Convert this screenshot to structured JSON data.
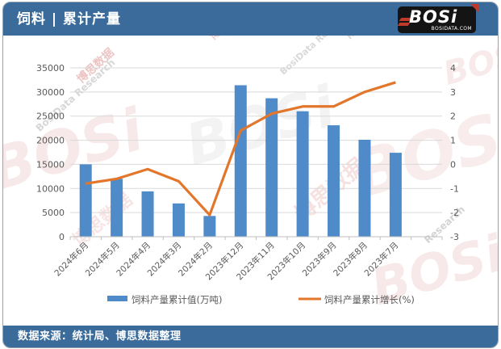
{
  "header": {
    "title": "饲料 | 累计产量",
    "logo": {
      "brand": "BOSi",
      "domain": "BOSIDATA.COM"
    }
  },
  "footer": {
    "source": "数据来源：统计局、博思数据整理"
  },
  "watermark": {
    "brand": "BOSi",
    "text_cn": "博思数据",
    "text_en": "BosiData Research",
    "text_en_short": "Research",
    "domain": "BOSIDATA.COM"
  },
  "colors": {
    "header_bg": "#3A6B9B",
    "footer_bg": "#3A6B9B",
    "bar": "#4F8BC9",
    "line": "#E2762B",
    "grid": "#D9D9D9",
    "axis": "#BFBFBF",
    "tick_label": "#595959",
    "logo_bg": "#141414",
    "logo_red": "#C0392B"
  },
  "chart_data": {
    "type": "bar+line combo",
    "title": "饲料 | 累计产量",
    "source_note": "数据来源：统计局、博思数据整理",
    "categories": [
      "2024年6月",
      "2024年5月",
      "2024年4月",
      "2024年3月",
      "2024年2月",
      "2023年12月",
      "2023年11月",
      "2023年10月",
      "2023年9月",
      "2023年8月",
      "2023年7月"
    ],
    "series": [
      {
        "name": "饲料产量累计值(万吨)",
        "type": "bar",
        "axis": "left",
        "color": "#4F8BC9",
        "values": [
          15000,
          12000,
          9400,
          6900,
          4300,
          31400,
          28700,
          26000,
          23100,
          20100,
          17400
        ]
      },
      {
        "name": "饲料产量累计增长(%)",
        "type": "line",
        "axis": "right",
        "color": "#E2762B",
        "values": [
          -0.8,
          -0.6,
          -0.2,
          -0.7,
          -2.1,
          1.4,
          2.1,
          2.4,
          2.4,
          3.0,
          3.4
        ]
      }
    ],
    "left_axis": {
      "min": 0,
      "max": 35000,
      "ticks": [
        0,
        5000,
        10000,
        15000,
        20000,
        25000,
        30000,
        35000
      ]
    },
    "right_axis": {
      "min": -3,
      "max": 4,
      "ticks": [
        -3,
        -2,
        -1,
        0,
        1,
        2,
        3,
        4
      ]
    },
    "grid": true,
    "legend_position": "bottom",
    "x_label_rotation_deg": -45
  }
}
